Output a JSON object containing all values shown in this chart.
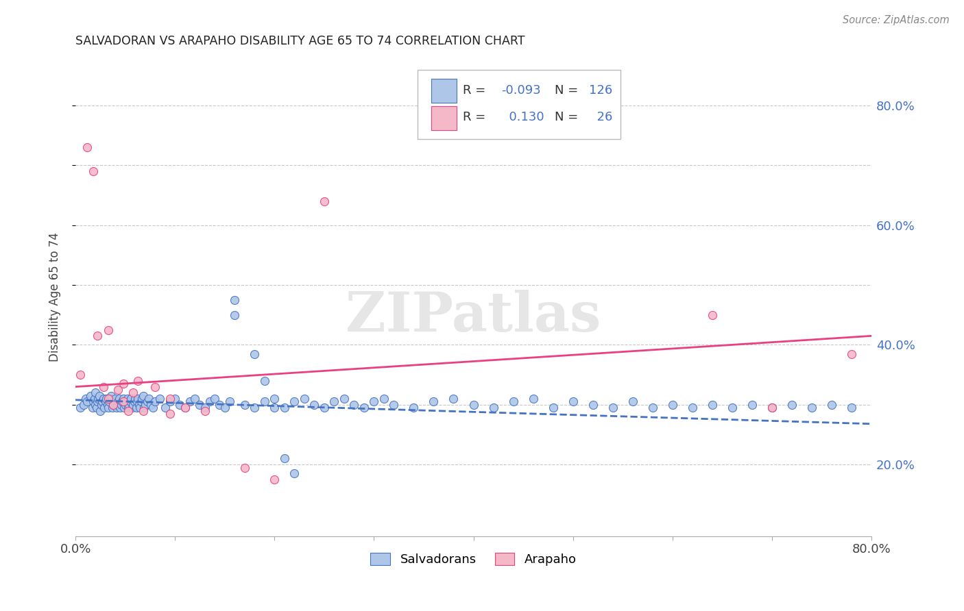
{
  "title": "SALVADORAN VS ARAPAHO DISABILITY AGE 65 TO 74 CORRELATION CHART",
  "source": "Source: ZipAtlas.com",
  "ylabel": "Disability Age 65 to 74",
  "watermark": "ZIPatlas",
  "salvadoran_color": "#aec6e8",
  "arapaho_color": "#f4b8c8",
  "salvadoran_line_color": "#4472c4",
  "arapaho_line_color": "#e84080",
  "background_color": "#ffffff",
  "grid_color": "#c8c8c8",
  "right_axis_color": "#4472c4",
  "xlim": [
    0.0,
    0.8
  ],
  "ylim": [
    0.08,
    0.88
  ],
  "salvadoran_scatter_x": [
    0.005,
    0.008,
    0.01,
    0.012,
    0.015,
    0.017,
    0.018,
    0.019,
    0.02,
    0.02,
    0.021,
    0.022,
    0.023,
    0.024,
    0.025,
    0.026,
    0.027,
    0.028,
    0.029,
    0.03,
    0.031,
    0.032,
    0.033,
    0.034,
    0.035,
    0.036,
    0.037,
    0.038,
    0.039,
    0.04,
    0.041,
    0.042,
    0.043,
    0.044,
    0.045,
    0.046,
    0.047,
    0.048,
    0.049,
    0.05,
    0.051,
    0.052,
    0.053,
    0.054,
    0.055,
    0.056,
    0.057,
    0.058,
    0.059,
    0.06,
    0.061,
    0.062,
    0.063,
    0.064,
    0.065,
    0.066,
    0.067,
    0.068,
    0.069,
    0.07,
    0.072,
    0.074,
    0.076,
    0.078,
    0.08,
    0.085,
    0.09,
    0.095,
    0.1,
    0.105,
    0.11,
    0.115,
    0.12,
    0.125,
    0.13,
    0.135,
    0.14,
    0.145,
    0.15,
    0.155,
    0.16,
    0.17,
    0.18,
    0.19,
    0.2,
    0.21,
    0.22,
    0.23,
    0.24,
    0.25,
    0.26,
    0.27,
    0.28,
    0.29,
    0.3,
    0.31,
    0.32,
    0.34,
    0.36,
    0.38,
    0.4,
    0.42,
    0.44,
    0.46,
    0.48,
    0.5,
    0.52,
    0.54,
    0.56,
    0.58,
    0.6,
    0.62,
    0.64,
    0.66,
    0.68,
    0.7,
    0.72,
    0.74,
    0.76,
    0.78,
    0.16,
    0.18,
    0.19,
    0.2,
    0.21,
    0.22
  ],
  "salvadoran_scatter_y": [
    0.295,
    0.3,
    0.31,
    0.305,
    0.315,
    0.295,
    0.305,
    0.31,
    0.3,
    0.32,
    0.295,
    0.305,
    0.31,
    0.315,
    0.29,
    0.3,
    0.305,
    0.31,
    0.295,
    0.305,
    0.31,
    0.3,
    0.295,
    0.305,
    0.31,
    0.315,
    0.295,
    0.3,
    0.305,
    0.31,
    0.295,
    0.3,
    0.305,
    0.31,
    0.295,
    0.3,
    0.305,
    0.31,
    0.295,
    0.3,
    0.305,
    0.31,
    0.295,
    0.3,
    0.305,
    0.31,
    0.295,
    0.3,
    0.305,
    0.31,
    0.295,
    0.305,
    0.31,
    0.3,
    0.295,
    0.305,
    0.31,
    0.315,
    0.295,
    0.3,
    0.305,
    0.31,
    0.3,
    0.295,
    0.305,
    0.31,
    0.295,
    0.305,
    0.31,
    0.3,
    0.295,
    0.305,
    0.31,
    0.3,
    0.295,
    0.305,
    0.31,
    0.3,
    0.295,
    0.305,
    0.475,
    0.3,
    0.295,
    0.305,
    0.31,
    0.295,
    0.305,
    0.31,
    0.3,
    0.295,
    0.305,
    0.31,
    0.3,
    0.295,
    0.305,
    0.31,
    0.3,
    0.295,
    0.305,
    0.31,
    0.3,
    0.295,
    0.305,
    0.31,
    0.295,
    0.305,
    0.3,
    0.295,
    0.305,
    0.295,
    0.3,
    0.295,
    0.3,
    0.295,
    0.3,
    0.295,
    0.3,
    0.295,
    0.3,
    0.295,
    0.45,
    0.385,
    0.34,
    0.295,
    0.21,
    0.185
  ],
  "arapaho_scatter_x": [
    0.005,
    0.012,
    0.018,
    0.022,
    0.028,
    0.033,
    0.038,
    0.043,
    0.048,
    0.053,
    0.058,
    0.063,
    0.068,
    0.08,
    0.095,
    0.11,
    0.13,
    0.17,
    0.2,
    0.25,
    0.64,
    0.7,
    0.78,
    0.033,
    0.048,
    0.095
  ],
  "arapaho_scatter_y": [
    0.35,
    0.73,
    0.69,
    0.415,
    0.33,
    0.425,
    0.3,
    0.325,
    0.305,
    0.29,
    0.32,
    0.34,
    0.29,
    0.33,
    0.285,
    0.295,
    0.29,
    0.195,
    0.175,
    0.64,
    0.45,
    0.295,
    0.385,
    0.31,
    0.335,
    0.31
  ],
  "salvadoran_line_x": [
    0.0,
    0.8
  ],
  "salvadoran_line_y": [
    0.308,
    0.268
  ],
  "arapaho_line_x": [
    0.0,
    0.8
  ],
  "arapaho_line_y": [
    0.33,
    0.415
  ],
  "legend_r_sal": "-0.093",
  "legend_n_sal": "126",
  "legend_r_ara": "0.130",
  "legend_n_ara": "26"
}
